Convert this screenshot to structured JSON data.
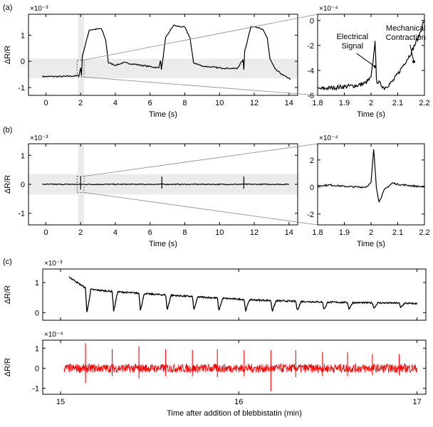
{
  "colors": {
    "trace": "#000000",
    "red_trace": "#ff0000",
    "band": "#ebebeb",
    "frame": "#000000",
    "connector": "#888888"
  },
  "chart_data": [
    {
      "id": "a_main",
      "panel_label": "(a)",
      "type": "line",
      "xlabel": "Time (s)",
      "ylabel": "ΔR/R",
      "multiplier": "×10⁻³",
      "xlim": [
        -1,
        14.5
      ],
      "ylim": [
        -1.3,
        1.8
      ],
      "xticks": [
        0,
        2,
        4,
        6,
        8,
        10,
        12,
        14
      ],
      "yticks": [
        -1,
        0,
        1
      ],
      "shaded_x": [
        1.85,
        2.2
      ],
      "shaded_y": [
        -0.65,
        0.1
      ],
      "inset_box": {
        "x": [
          1.8,
          2.2
        ],
        "y": [
          -0.6,
          0.05
        ]
      },
      "grid": false,
      "series": [
        {
          "x": [
            -0.2,
            1.0,
            1.9,
            2.0,
            2.05,
            2.1,
            2.5,
            3.2,
            3.45,
            3.6,
            4.0,
            4.5,
            5.5,
            6.5,
            6.6,
            6.65,
            6.7,
            6.9,
            7.35,
            7.5,
            8.0,
            8.3,
            8.5,
            9.0,
            10.0,
            11.0,
            11.35,
            11.4,
            11.45,
            11.8,
            12.0,
            12.5,
            12.75,
            12.9,
            13.2,
            13.7,
            14.1
          ],
          "y": [
            -0.58,
            -0.58,
            -0.55,
            -0.25,
            -0.55,
            0.2,
            1.2,
            1.25,
            0.8,
            -0.05,
            -0.15,
            -0.05,
            -0.15,
            -0.25,
            0.05,
            -0.3,
            -0.1,
            0.9,
            1.38,
            1.35,
            1.3,
            0.9,
            -0.05,
            -0.18,
            -0.25,
            -0.28,
            0.05,
            -0.3,
            0.4,
            1.3,
            1.35,
            1.2,
            0.9,
            0.1,
            -0.3,
            -0.55,
            -0.68
          ]
        }
      ]
    },
    {
      "id": "a_inset",
      "type": "line",
      "xlabel": "Time (s)",
      "ylabel": "",
      "multiplier": "×10⁻⁴",
      "xlim": [
        1.8,
        2.2
      ],
      "ylim": [
        -6,
        0.5
      ],
      "xticks": [
        1.8,
        1.9,
        2.0,
        2.1,
        2.2
      ],
      "yticks": [
        0,
        -2,
        -4,
        -6
      ],
      "grid": false,
      "annotations": [
        {
          "text": "Electrical",
          "line2": "Signal",
          "x": 1.93,
          "y": -1.5,
          "tx": 2.015,
          "ty": -3.7
        },
        {
          "text": "Mechanical",
          "line2": "Contraction",
          "x": 2.13,
          "y": -0.8,
          "tx": 2.16,
          "ty": -3.3
        }
      ],
      "series": [
        {
          "x": [
            1.8,
            1.85,
            1.9,
            1.95,
            1.98,
            2.0,
            2.01,
            2.015,
            2.02,
            2.03,
            2.05,
            2.08,
            2.1,
            2.12,
            2.15,
            2.18,
            2.2
          ],
          "y": [
            -5.5,
            -5.4,
            -5.3,
            -5.2,
            -5.0,
            -4.6,
            -2.8,
            -1.5,
            -4.8,
            -5.0,
            -5.4,
            -4.9,
            -4.3,
            -3.6,
            -2.6,
            -1.2,
            0.1
          ]
        }
      ]
    },
    {
      "id": "b_main",
      "panel_label": "(b)",
      "type": "line",
      "xlabel": "Time (s)",
      "ylabel": "ΔR/R",
      "multiplier": "×10⁻³",
      "xlim": [
        -1,
        14.5
      ],
      "ylim": [
        -1.4,
        1.4
      ],
      "xticks": [
        0,
        2,
        4,
        6,
        8,
        10,
        12,
        14
      ],
      "yticks": [
        -1,
        0,
        1
      ],
      "shaded_x": [
        1.85,
        2.2
      ],
      "shaded_y": [
        -0.35,
        0.35
      ],
      "inset_box": {
        "x": [
          1.8,
          2.2
        ],
        "y": [
          -0.28,
          0.28
        ]
      },
      "grid": false,
      "spikes": [
        {
          "x": 2.0,
          "up": 0.27,
          "down": -0.18
        },
        {
          "x": 6.68,
          "up": 0.27,
          "down": -0.15
        },
        {
          "x": 11.4,
          "up": 0.27,
          "down": -0.15
        }
      ],
      "series": [
        {
          "x": [
            -0.2,
            14.0
          ],
          "y": [
            0,
            0
          ]
        }
      ]
    },
    {
      "id": "b_inset",
      "type": "line",
      "xlabel": "Time (s)",
      "ylabel": "",
      "multiplier": "×10⁻⁴",
      "xlim": [
        1.8,
        2.2
      ],
      "ylim": [
        -2.8,
        3.2
      ],
      "xticks": [
        1.8,
        1.9,
        2.0,
        2.1,
        2.2
      ],
      "yticks": [
        2,
        0,
        -2
      ],
      "grid": false,
      "series": [
        {
          "x": [
            1.8,
            1.85,
            1.9,
            1.95,
            1.98,
            2.0,
            2.01,
            2.02,
            2.03,
            2.05,
            2.08,
            2.1,
            2.15,
            2.2
          ],
          "y": [
            0.1,
            0.15,
            0.05,
            0.0,
            0.0,
            0.3,
            2.8,
            0.0,
            -1.1,
            -0.2,
            0.3,
            0.2,
            0.1,
            0.0
          ]
        }
      ]
    },
    {
      "id": "c_top",
      "panel_label": "(c)",
      "type": "line",
      "xlabel": "",
      "ylabel": "ΔR/R",
      "multiplier": "×10⁻³",
      "xlim": [
        14.9,
        17.05
      ],
      "ylim": [
        -0.25,
        1.45
      ],
      "xticks": [
        15,
        16,
        17
      ],
      "yticks": [
        0,
        1
      ],
      "grid": false,
      "baseline_x": [
        15.05,
        15.15,
        15.3,
        15.5,
        15.7,
        15.9,
        16.1,
        16.3,
        16.5,
        16.7,
        16.9,
        17.0
      ],
      "baseline_y": [
        1.18,
        0.78,
        0.7,
        0.62,
        0.55,
        0.48,
        0.42,
        0.38,
        0.35,
        0.33,
        0.32,
        0.3
      ],
      "contractions": [
        15.14,
        15.29,
        15.44,
        15.59,
        15.74,
        15.88,
        16.03,
        16.18,
        16.32,
        16.47,
        16.61,
        16.75,
        16.9
      ],
      "dip_depths": [
        0.8,
        0.65,
        0.55,
        0.5,
        0.45,
        0.42,
        0.38,
        0.35,
        0.3,
        0.25,
        0.22,
        0.18,
        0.15
      ]
    },
    {
      "id": "c_bottom",
      "type": "line",
      "xlabel": "Time after addition of blebbistatin (min)",
      "ylabel": "ΔR/R",
      "multiplier": "×10⁻⁴",
      "xlim": [
        14.9,
        17.05
      ],
      "ylim": [
        -1.3,
        1.4
      ],
      "xticks": [
        15,
        16,
        17
      ],
      "yticks": [
        1,
        0,
        -1
      ],
      "grid": false,
      "noise_band": 0.22,
      "x_range": [
        15.02,
        17.0
      ],
      "spikes": [
        {
          "x": 15.14,
          "up": 1.25,
          "down": -0.75
        },
        {
          "x": 15.29,
          "up": 0.95,
          "down": -0.4
        },
        {
          "x": 15.44,
          "up": 1.1,
          "down": -0.5
        },
        {
          "x": 15.59,
          "up": 0.95,
          "down": -0.4
        },
        {
          "x": 15.74,
          "up": 0.9,
          "down": -0.4
        },
        {
          "x": 15.88,
          "up": 0.95,
          "down": -0.45
        },
        {
          "x": 16.03,
          "up": 0.9,
          "down": -0.4
        },
        {
          "x": 16.18,
          "up": 0.9,
          "down": -1.15
        },
        {
          "x": 16.32,
          "up": 0.9,
          "down": -0.45
        },
        {
          "x": 16.47,
          "up": 0.8,
          "down": -0.4
        },
        {
          "x": 16.61,
          "up": 0.8,
          "down": -0.4
        },
        {
          "x": 16.75,
          "up": 0.7,
          "down": -0.35
        },
        {
          "x": 16.9,
          "up": 0.7,
          "down": -0.35
        }
      ]
    }
  ]
}
